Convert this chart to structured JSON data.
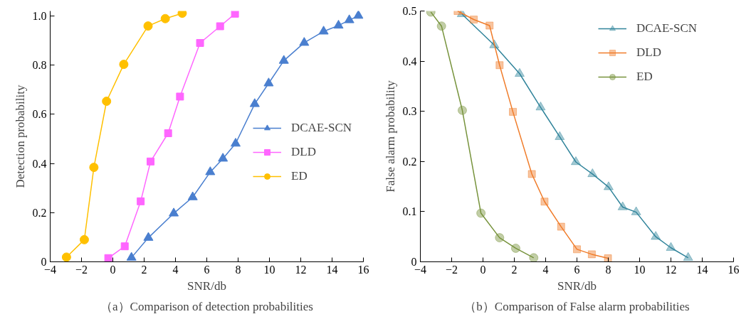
{
  "chart_data": [
    {
      "type": "line",
      "xlabel": "SNR/db",
      "ylabel": "Detection probability",
      "annotations": [
        "（a）Comparison of detection probabilities"
      ],
      "legend": "right",
      "grid": false,
      "xlim": [
        -4,
        16
      ],
      "xticks": [
        -4,
        -2,
        0,
        2,
        4,
        6,
        8,
        10,
        12,
        14,
        16
      ],
      "ylim": [
        0,
        1.02
      ],
      "yticks": [
        0,
        0.2,
        0.4,
        0.6,
        0.8,
        {
          "value": 1,
          "label": "1.0"
        }
      ],
      "series": [
        {
          "name": "DCAE-SCN",
          "color": "#4a7fcf",
          "marker": "triangle",
          "x": [
            1.19,
            2.27,
            3.89,
            5.1,
            6.22,
            7.03,
            7.84,
            9.06,
            9.95,
            10.92,
            12.22,
            13.46,
            14.41,
            15.1,
            15.68
          ],
          "values": [
            0.017,
            0.098,
            0.197,
            0.263,
            0.365,
            0.42,
            0.481,
            0.642,
            0.726,
            0.818,
            0.891,
            0.937,
            0.961,
            0.983,
            1.001
          ]
        },
        {
          "name": "DLD",
          "color": "#ff66ff",
          "marker": "square",
          "x": [
            -0.29,
            0.76,
            1.78,
            2.41,
            3.53,
            4.29,
            5.57,
            6.85,
            7.8
          ],
          "values": [
            0.015,
            0.063,
            0.246,
            0.408,
            0.523,
            0.672,
            0.89,
            0.958,
            1.009
          ]
        },
        {
          "name": "ED",
          "color": "#ffc000",
          "marker": "circle",
          "x": [
            -2.96,
            -1.82,
            -1.21,
            -0.4,
            0.7,
            2.25,
            3.35,
            4.43
          ],
          "values": [
            0.019,
            0.09,
            0.384,
            0.653,
            0.803,
            0.959,
            0.989,
            1.011
          ]
        }
      ]
    },
    {
      "type": "line",
      "xlabel": "SNR/db",
      "ylabel": "False alarm probability",
      "annotations": [
        "（b）Comparison of False alarm probabilities"
      ],
      "legend": "top right",
      "grid": false,
      "xlim": [
        -4,
        16
      ],
      "xticks": [
        -4,
        -2,
        0,
        2,
        4,
        6,
        8,
        10,
        12,
        14,
        16
      ],
      "ylim": [
        0,
        0.5
      ],
      "yticks": [
        0,
        0.1,
        0.2,
        0.3,
        0.4,
        0.5
      ],
      "series": [
        {
          "name": "DCAE-SCN",
          "color": "#31849b",
          "marker": "triangle",
          "x": [
            -1.35,
            0.72,
            2.34,
            3.68,
            4.9,
            5.93,
            6.99,
            8.02,
            8.92,
            9.78,
            11.03,
            12.0,
            13.1
          ],
          "values": [
            0.494,
            0.432,
            0.375,
            0.308,
            0.249,
            0.199,
            0.175,
            0.149,
            0.109,
            0.099,
            0.05,
            0.028,
            0.008
          ]
        },
        {
          "name": "DLD",
          "color": "#f07c2a",
          "marker": "square",
          "x": [
            -1.62,
            -0.59,
            0.42,
            1.06,
            1.91,
            3.12,
            3.93,
            4.99,
            6.0,
            6.95,
            7.98
          ],
          "values": [
            0.5,
            0.483,
            0.471,
            0.392,
            0.299,
            0.175,
            0.12,
            0.07,
            0.025,
            0.015,
            0.007
          ]
        },
        {
          "name": "ED",
          "color": "#77933c",
          "marker": "circle",
          "x": [
            -3.33,
            -2.65,
            -1.32,
            -0.13,
            1.06,
            2.09,
            3.24
          ],
          "values": [
            0.498,
            0.47,
            0.302,
            0.097,
            0.048,
            0.027,
            0.008
          ]
        }
      ]
    }
  ]
}
